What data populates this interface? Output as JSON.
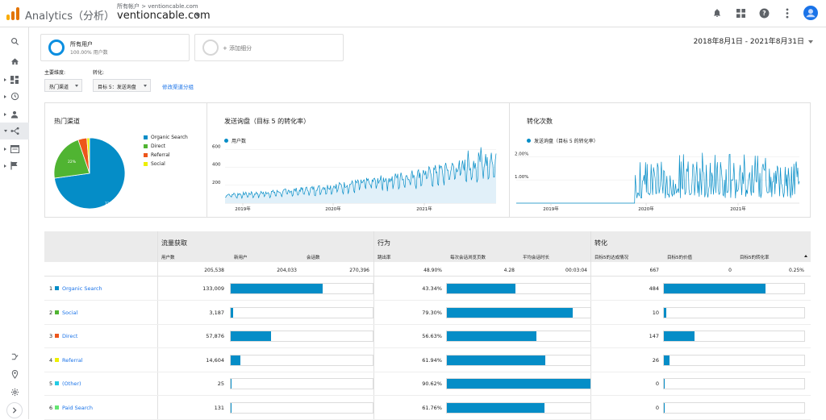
{
  "app": {
    "name": "Analytics（分析）",
    "breadcrumb": "所有帐户 > ventioncable.com",
    "account": "ventioncable.com"
  },
  "segments": [
    {
      "title": "所有用户",
      "subtitle": "100.00% 用户数",
      "color": "#0a8ee0"
    },
    {
      "title": "+ 添加细分",
      "subtitle": "",
      "color": "#d6d6d6"
    }
  ],
  "date_range": "2018年8月1日 - 2021年8月31日",
  "controls": {
    "dimension_label": "主要维度:",
    "dimension_value": "热门渠道",
    "conversion_label": "转化:",
    "conversion_value": "目标 5：发送询盘",
    "modify_link": "修改渠道分组"
  },
  "charts": {
    "pie": {
      "title": "热门渠道",
      "slice_labels": [
        "72.8%",
        "22%"
      ],
      "legend": [
        {
          "label": "Organic Search",
          "color": "#058dc7"
        },
        {
          "label": "Direct",
          "color": "#50b432"
        },
        {
          "label": "Referral",
          "color": "#ed561b"
        },
        {
          "label": "Social",
          "color": "#edef00"
        }
      ]
    },
    "sessions": {
      "title": "发送询盘（目标 5 的转化率）",
      "legend": "用户数",
      "y_ticks": [
        "600",
        "400",
        "200"
      ],
      "x_ticks": [
        "2019年",
        "2020年",
        "2021年"
      ]
    },
    "conversions": {
      "title": "转化次数",
      "legend": "发送询盘（目标 5 的转化率）",
      "y_ticks": [
        "2.00%",
        "1.00%"
      ],
      "x_ticks": [
        "2019年",
        "2020年",
        "2021年"
      ]
    }
  },
  "chart_data": [
    {
      "type": "pie",
      "title": "热门渠道",
      "categories": [
        "Organic Search",
        "Direct",
        "Referral",
        "Social"
      ],
      "values": [
        72.8,
        22,
        4,
        1.2
      ]
    },
    {
      "type": "area",
      "title": "发送询盘（目标 5 的转化率）",
      "series": [
        {
          "name": "用户数"
        }
      ],
      "x": [
        "2019年",
        "2020年",
        "2021年"
      ],
      "ylim": [
        0,
        650
      ],
      "trend": {
        "start": 100,
        "end": 500
      }
    },
    {
      "type": "line",
      "title": "转化次数",
      "series": [
        {
          "name": "发送询盘（目标 5 的转化率）"
        }
      ],
      "x": [
        "2019年",
        "2020年",
        "2021年"
      ],
      "ylim": [
        0,
        0.025
      ]
    }
  ],
  "table": {
    "groups": [
      "流量获取",
      "行为",
      "转化"
    ],
    "columns": [
      "用户数",
      "新用户",
      "会话数",
      "跳出率",
      "每次会话浏览页数",
      "平均会话时长",
      "目标5的达成情况",
      "目标5的价值",
      "目标5的转化率"
    ],
    "totals": [
      "205,538",
      "204,033",
      "270,396",
      "48.90%",
      "4.28",
      "00:03:04",
      "667",
      "0",
      "0.25%"
    ],
    "rows": [
      {
        "num": "1",
        "name": "Organic Search",
        "color": "#058dc7",
        "users": "133,009",
        "bounce": "43.34%",
        "goal": "484",
        "users_frac": 0.647,
        "bounce_frac": 0.478,
        "goal_frac": 0.727
      },
      {
        "num": "2",
        "name": "Social",
        "color": "#50b432",
        "users": "3,187",
        "bounce": "79.30%",
        "goal": "10",
        "users_frac": 0.016,
        "bounce_frac": 0.875,
        "goal_frac": 0.015
      },
      {
        "num": "3",
        "name": "Direct",
        "color": "#ed561b",
        "users": "57,876",
        "bounce": "56.63%",
        "goal": "147",
        "users_frac": 0.282,
        "bounce_frac": 0.625,
        "goal_frac": 0.221
      },
      {
        "num": "4",
        "name": "Referral",
        "color": "#edef00",
        "users": "14,604",
        "bounce": "61.94%",
        "goal": "26",
        "users_frac": 0.071,
        "bounce_frac": 0.683,
        "goal_frac": 0.039
      },
      {
        "num": "5",
        "name": "(Other)",
        "color": "#24cbe5",
        "users": "25",
        "bounce": "90.62%",
        "goal": "0",
        "users_frac": 0.0,
        "bounce_frac": 1.0,
        "goal_frac": 0.0
      },
      {
        "num": "6",
        "name": "Paid Search",
        "color": "#64e572",
        "users": "131",
        "bounce": "61.76%",
        "goal": "0",
        "users_frac": 0.0,
        "bounce_frac": 0.681,
        "goal_frac": 0.0
      }
    ]
  }
}
